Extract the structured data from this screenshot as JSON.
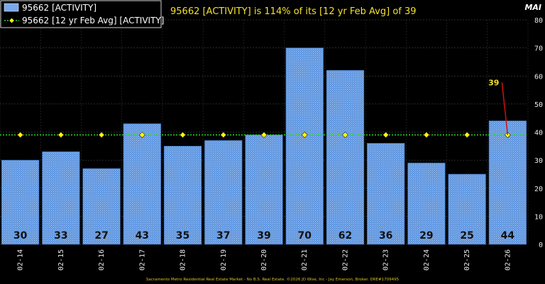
{
  "chart_data": {
    "type": "bar",
    "headline": "95662 [ACTIVITY] is 114% of its [12 yr Feb Avg] of 39",
    "categories": [
      "02-14",
      "02-15",
      "02-16",
      "02-17",
      "02-18",
      "02-19",
      "02-20",
      "02-21",
      "02-22",
      "02-23",
      "02-24",
      "02-25",
      "02-26"
    ],
    "series": [
      {
        "name": "95662 [ACTIVITY]",
        "type": "bar",
        "values": [
          30,
          33,
          27,
          43,
          35,
          37,
          39,
          70,
          62,
          36,
          29,
          25,
          44
        ],
        "color": "#5b93de"
      },
      {
        "name": "95662 [12 yr Feb Avg] [ACTIVITY]",
        "type": "line",
        "values": [
          39,
          39,
          39,
          39,
          39,
          39,
          39,
          39,
          39,
          39,
          39,
          39,
          39
        ],
        "color": "#22dd22",
        "marker_color": "#ffff00"
      }
    ],
    "data_labels": [
      "30",
      "33",
      "27",
      "43",
      "35",
      "37",
      "39",
      "70",
      "62",
      "36",
      "29",
      "25",
      "44"
    ],
    "ylabel": "MAI",
    "ylim": [
      0,
      80
    ],
    "yticks": [
      0,
      10,
      20,
      30,
      40,
      50,
      60,
      70,
      80
    ],
    "grid": true,
    "legend": "top-left",
    "callout": {
      "text": "39",
      "category": "02-26",
      "value": 39
    },
    "footer": "Sacramento Metro Residential Real Estate Market - No B.S. Real Estate. ©2026 JD Wise, Inc - Jay Emerson, Broker. DRE#1709495"
  }
}
